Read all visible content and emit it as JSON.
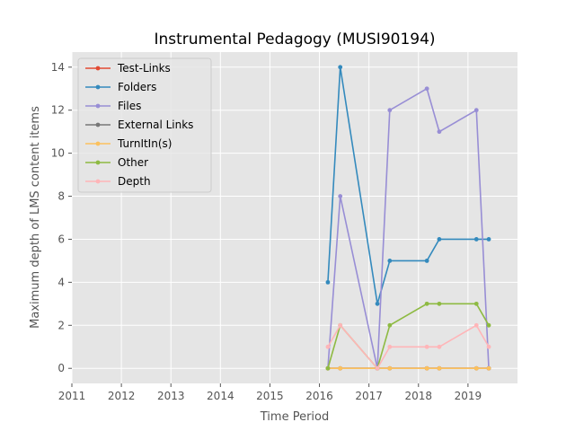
{
  "chart_data": {
    "type": "line",
    "title": "Instrumental Pedagogy (MUSI90194)",
    "xlabel": "Time Period",
    "ylabel": "Maximum depth of LMS content items",
    "xlim": [
      2011.0,
      2020.0
    ],
    "ylim": [
      -0.7,
      14.7
    ],
    "x_ticks": [
      2011,
      2012,
      2013,
      2014,
      2015,
      2016,
      2017,
      2018,
      2019
    ],
    "y_ticks": [
      0,
      2,
      4,
      6,
      8,
      10,
      12,
      14
    ],
    "grid": true,
    "legend_position": "top-left",
    "x": [
      2016.17,
      2016.42,
      2017.17,
      2017.42,
      2018.17,
      2018.42,
      2019.17,
      2019.42
    ],
    "series": [
      {
        "name": "Test-Links",
        "color": "#e24a33",
        "values": [
          0,
          0,
          0,
          0,
          0,
          0,
          0,
          0
        ]
      },
      {
        "name": "Folders",
        "color": "#348abd",
        "values": [
          4,
          14,
          3,
          5,
          5,
          6,
          6,
          6
        ]
      },
      {
        "name": "Files",
        "color": "#988ed5",
        "values": [
          0,
          8,
          0,
          12,
          13,
          11,
          12,
          0
        ]
      },
      {
        "name": "External Links",
        "color": "#777777",
        "values": [
          0,
          0,
          0,
          0,
          0,
          0,
          0,
          0
        ]
      },
      {
        "name": "TurnItIn(s)",
        "color": "#fbc15e",
        "values": [
          0,
          0,
          0,
          0,
          0,
          0,
          0,
          0
        ]
      },
      {
        "name": "Other",
        "color": "#8eba42",
        "values": [
          0,
          2,
          0,
          2,
          3,
          3,
          3,
          2
        ]
      },
      {
        "name": "Depth",
        "color": "#ffb5b8",
        "values": [
          1,
          2,
          0,
          1,
          1,
          1,
          2,
          1
        ]
      }
    ]
  }
}
